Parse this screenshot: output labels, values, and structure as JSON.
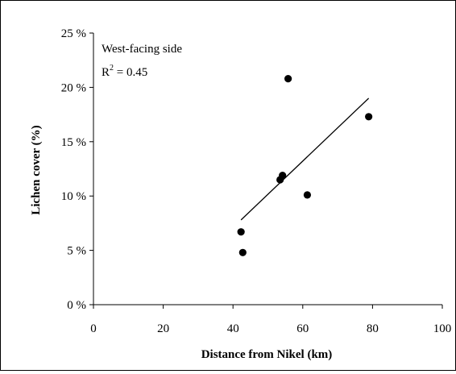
{
  "chart_data": {
    "type": "scatter",
    "xlabel": "Distance from Nikel (km)",
    "ylabel": "Lichen cover (%)",
    "xlim": [
      0,
      100
    ],
    "ylim": [
      0,
      25
    ],
    "x_ticks": [
      "0",
      "20",
      "40",
      "60",
      "80",
      "100"
    ],
    "y_ticks": [
      "0 %",
      "5 %",
      "10 %",
      "15 %",
      "20 %",
      "25 %"
    ],
    "grid": false,
    "legend": "none",
    "annotation": {
      "label": "West-facing side",
      "r2_prefix": "R",
      "r2_sup": "2",
      "r2_value": " = 0.45"
    },
    "points": [
      {
        "x": 42.3,
        "y": 6.7
      },
      {
        "x": 42.8,
        "y": 4.8
      },
      {
        "x": 53.5,
        "y": 11.5
      },
      {
        "x": 54.2,
        "y": 11.9
      },
      {
        "x": 55.8,
        "y": 20.8
      },
      {
        "x": 61.3,
        "y": 10.1
      },
      {
        "x": 78.9,
        "y": 17.3
      }
    ],
    "trendline": {
      "x": [
        42.3,
        78.9
      ],
      "y": [
        7.8,
        19.0
      ]
    },
    "colors": {
      "marker": "#000000",
      "line": "#000000",
      "axis": "#000000"
    }
  }
}
